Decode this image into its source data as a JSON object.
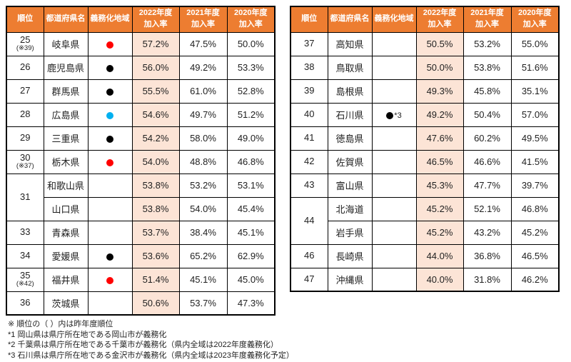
{
  "colors": {
    "header_bg": "#ED7D31",
    "header_text": "#FFFFFF",
    "highlight_2022_bg": "#FCE4D6",
    "border": "#000000",
    "dot_red": "#FF0000",
    "dot_black": "#000000",
    "dot_cyan": "#00B0F0"
  },
  "headers": [
    {
      "key": "rank",
      "lines": [
        "順位"
      ]
    },
    {
      "key": "prefecture",
      "lines": [
        "都道府県名"
      ]
    },
    {
      "key": "mandatory-area",
      "lines": [
        "義務化地域"
      ]
    },
    {
      "key": "rate-2022",
      "lines": [
        "2022年度",
        "加入率"
      ]
    },
    {
      "key": "rate-2021",
      "lines": [
        "2021年度",
        "加入率"
      ]
    },
    {
      "key": "rate-2020",
      "lines": [
        "2020年度",
        "加入率"
      ]
    }
  ],
  "left_table": {
    "rows": [
      {
        "rank": "25",
        "rank_note": "(※39)",
        "rank_span": 1,
        "pref": "岐阜県",
        "dot": "red",
        "dot_note": "",
        "r2022": "57.2%",
        "r2021": "47.5%",
        "r2020": "50.0%"
      },
      {
        "rank": "26",
        "rank_note": "",
        "rank_span": 1,
        "pref": "鹿児島県",
        "dot": "black",
        "dot_note": "",
        "r2022": "56.0%",
        "r2021": "49.2%",
        "r2020": "53.3%"
      },
      {
        "rank": "27",
        "rank_note": "",
        "rank_span": 1,
        "pref": "群馬県",
        "dot": "black",
        "dot_note": "",
        "r2022": "55.5%",
        "r2021": "61.0%",
        "r2020": "52.8%"
      },
      {
        "rank": "28",
        "rank_note": "",
        "rank_span": 1,
        "pref": "広島県",
        "dot": "cyan",
        "dot_note": "",
        "r2022": "54.6%",
        "r2021": "49.7%",
        "r2020": "51.2%"
      },
      {
        "rank": "29",
        "rank_note": "",
        "rank_span": 1,
        "pref": "三重県",
        "dot": "black",
        "dot_note": "",
        "r2022": "54.2%",
        "r2021": "58.0%",
        "r2020": "49.0%"
      },
      {
        "rank": "30",
        "rank_note": "(※37)",
        "rank_span": 1,
        "pref": "栃木県",
        "dot": "red",
        "dot_note": "",
        "r2022": "54.0%",
        "r2021": "48.8%",
        "r2020": "46.8%"
      },
      {
        "rank": "31",
        "rank_note": "",
        "rank_span": 2,
        "pref": "和歌山県",
        "dot": null,
        "dot_note": "",
        "r2022": "53.8%",
        "r2021": "53.2%",
        "r2020": "53.1%"
      },
      {
        "rank": null,
        "rank_note": "",
        "rank_span": 0,
        "pref": "山口県",
        "dot": null,
        "dot_note": "",
        "r2022": "53.8%",
        "r2021": "54.0%",
        "r2020": "45.4%"
      },
      {
        "rank": "33",
        "rank_note": "",
        "rank_span": 1,
        "pref": "青森県",
        "dot": null,
        "dot_note": "",
        "r2022": "53.7%",
        "r2021": "38.4%",
        "r2020": "45.1%"
      },
      {
        "rank": "34",
        "rank_note": "",
        "rank_span": 1,
        "pref": "愛媛県",
        "dot": "black",
        "dot_note": "",
        "r2022": "53.6%",
        "r2021": "65.2%",
        "r2020": "62.9%"
      },
      {
        "rank": "35",
        "rank_note": "(※42)",
        "rank_span": 1,
        "pref": "福井県",
        "dot": "red",
        "dot_note": "",
        "r2022": "51.4%",
        "r2021": "45.1%",
        "r2020": "45.0%"
      },
      {
        "rank": "36",
        "rank_note": "",
        "rank_span": 1,
        "pref": "茨城県",
        "dot": null,
        "dot_note": "",
        "r2022": "50.6%",
        "r2021": "53.7%",
        "r2020": "47.3%"
      }
    ]
  },
  "right_table": {
    "rows": [
      {
        "rank": "37",
        "rank_note": "",
        "rank_span": 1,
        "pref": "高知県",
        "dot": null,
        "dot_note": "",
        "r2022": "50.5%",
        "r2021": "53.2%",
        "r2020": "55.0%"
      },
      {
        "rank": "38",
        "rank_note": "",
        "rank_span": 1,
        "pref": "鳥取県",
        "dot": null,
        "dot_note": "",
        "r2022": "50.0%",
        "r2021": "53.8%",
        "r2020": "51.6%"
      },
      {
        "rank": "39",
        "rank_note": "",
        "rank_span": 1,
        "pref": "島根県",
        "dot": null,
        "dot_note": "",
        "r2022": "49.3%",
        "r2021": "45.8%",
        "r2020": "35.1%"
      },
      {
        "rank": "40",
        "rank_note": "",
        "rank_span": 1,
        "pref": "石川県",
        "dot": "black",
        "dot_note": "*3",
        "r2022": "49.2%",
        "r2021": "50.4%",
        "r2020": "57.0%"
      },
      {
        "rank": "41",
        "rank_note": "",
        "rank_span": 1,
        "pref": "徳島県",
        "dot": null,
        "dot_note": "",
        "r2022": "47.6%",
        "r2021": "60.2%",
        "r2020": "49.5%"
      },
      {
        "rank": "42",
        "rank_note": "",
        "rank_span": 1,
        "pref": "佐賀県",
        "dot": null,
        "dot_note": "",
        "r2022": "46.5%",
        "r2021": "46.6%",
        "r2020": "41.5%"
      },
      {
        "rank": "43",
        "rank_note": "",
        "rank_span": 1,
        "pref": "富山県",
        "dot": null,
        "dot_note": "",
        "r2022": "45.3%",
        "r2021": "47.7%",
        "r2020": "39.7%"
      },
      {
        "rank": "44",
        "rank_note": "",
        "rank_span": 2,
        "pref": "北海道",
        "dot": null,
        "dot_note": "",
        "r2022": "45.2%",
        "r2021": "52.1%",
        "r2020": "46.8%"
      },
      {
        "rank": null,
        "rank_note": "",
        "rank_span": 0,
        "pref": "岩手県",
        "dot": null,
        "dot_note": "",
        "r2022": "45.2%",
        "r2021": "43.2%",
        "r2020": "45.2%"
      },
      {
        "rank": "46",
        "rank_note": "",
        "rank_span": 1,
        "pref": "長崎県",
        "dot": null,
        "dot_note": "",
        "r2022": "44.0%",
        "r2021": "36.8%",
        "r2020": "46.5%"
      },
      {
        "rank": "47",
        "rank_note": "",
        "rank_span": 1,
        "pref": "沖縄県",
        "dot": null,
        "dot_note": "",
        "r2022": "40.0%",
        "r2021": "31.8%",
        "r2020": "46.2%"
      }
    ]
  },
  "footnotes": [
    "※ 順位の（ ）内は昨年度順位",
    "*1 岡山県は県庁所在地である岡山市が義務化",
    "*2 千葉県は県庁所在地である千葉市が義務化（県内全域は2022年度義務化）",
    "*3 石川県は県庁所在地である金沢市が義務化（県内全域は2023年度義務化予定）"
  ]
}
